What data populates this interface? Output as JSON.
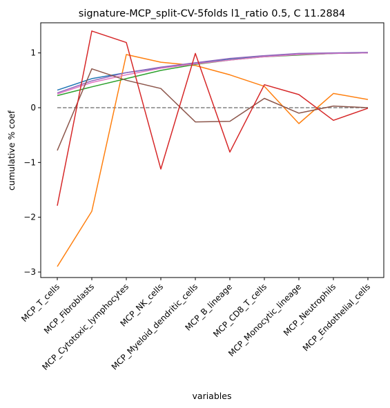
{
  "chart_data": {
    "type": "line",
    "title": "signature-MCP_split-CV-5folds l1_ratio 0.5, C 11.2884",
    "xlabel": "variables",
    "ylabel": "cumulative % coef",
    "categories": [
      "MCP_T_cells",
      "MCP_Fibroblasts",
      "MCP_Cytotoxic_lymphocytes",
      "MCP_NK_cells",
      "MCP_Myeloid_dendritic_cells",
      "MCP_B_lineage",
      "MCP_CD8_T_cells",
      "MCP_Monocytic_lineage",
      "MCP_Neutrophils",
      "MCP_Endothelial_cells"
    ],
    "ylim": [
      -3.1,
      1.55
    ],
    "yticks": [
      -3,
      -2,
      -1,
      0,
      1
    ],
    "ytick_labels": [
      "−3",
      "−2",
      "−1",
      "0",
      "1"
    ],
    "grid": false,
    "legend": "none",
    "reference_line": {
      "y": 0,
      "color": "#808080",
      "style": "dashed"
    },
    "series": [
      {
        "color": "#1f77b4",
        "values": [
          0.32,
          0.53,
          0.64,
          0.73,
          0.81,
          0.89,
          0.94,
          0.97,
          0.99,
          1.0
        ]
      },
      {
        "color": "#ff7f0e",
        "values": [
          -2.9,
          -1.89,
          0.97,
          0.83,
          0.77,
          0.6,
          0.39,
          -0.29,
          0.26,
          0.15
        ]
      },
      {
        "color": "#2ca02c",
        "values": [
          0.22,
          0.38,
          0.53,
          0.68,
          0.79,
          0.87,
          0.93,
          0.96,
          0.99,
          1.0
        ]
      },
      {
        "color": "#e377c2",
        "values": [
          0.25,
          0.46,
          0.6,
          0.72,
          0.8,
          0.87,
          0.93,
          0.97,
          0.99,
          1.0
        ]
      },
      {
        "color": "#9467bd",
        "values": [
          0.27,
          0.49,
          0.64,
          0.74,
          0.82,
          0.9,
          0.95,
          0.99,
          1.0,
          1.01
        ]
      },
      {
        "color": "#8c564b",
        "values": [
          -0.78,
          0.71,
          0.5,
          0.35,
          -0.26,
          -0.25,
          0.17,
          -0.1,
          0.03,
          0.0
        ]
      },
      {
        "color": "#d62728",
        "values": [
          -1.79,
          1.4,
          1.19,
          -1.12,
          0.99,
          -0.81,
          0.42,
          0.24,
          -0.23,
          -0.01
        ]
      }
    ]
  }
}
